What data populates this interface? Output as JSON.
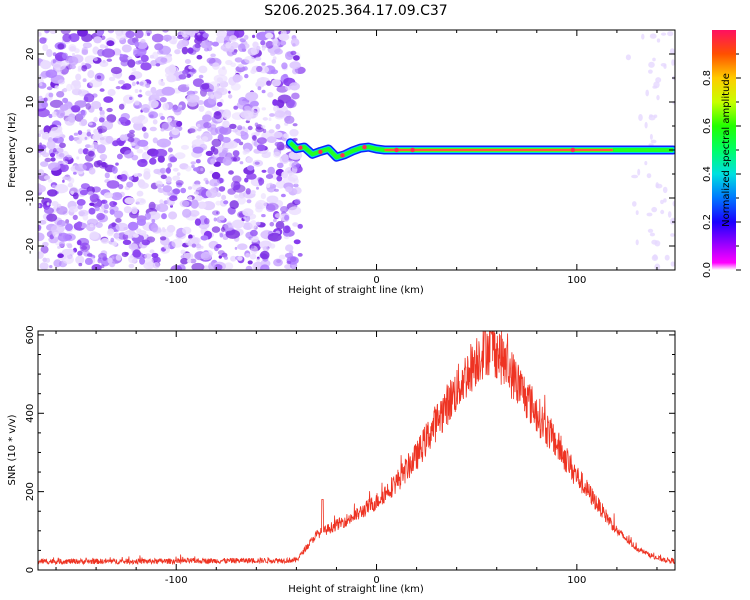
{
  "title": "S206.2025.364.17.09.C37",
  "colors": {
    "snr_line": "#ee3322",
    "noise": "#7a2be6",
    "track_outer": "#1a20ff",
    "track_inner": "#ff2a55"
  },
  "chart_data": [
    {
      "type": "heatmap",
      "xlabel": "Height of straight line (km)",
      "ylabel": "Frequency (Hz)",
      "xlim": [
        -169,
        149
      ],
      "ylim": [
        -25,
        25
      ],
      "xticks": [
        -100,
        0,
        100
      ],
      "yticks": [
        -20,
        -10,
        0,
        10,
        20
      ],
      "noise_region_x": [
        -169,
        -40
      ],
      "edge_noise_x": [
        125,
        149
      ],
      "track": {
        "start_x": -43,
        "end_x": 148,
        "steady_freq_hz": 0,
        "wiggle_points": [
          {
            "x": -43,
            "y": 1.5
          },
          {
            "x": -40,
            "y": 0.3
          },
          {
            "x": -36,
            "y": 0.6
          },
          {
            "x": -32,
            "y": -0.9
          },
          {
            "x": -28,
            "y": -0.3
          },
          {
            "x": -24,
            "y": 0.2
          },
          {
            "x": -20,
            "y": -1.5
          },
          {
            "x": -16,
            "y": -1.0
          },
          {
            "x": -12,
            "y": -0.2
          },
          {
            "x": -8,
            "y": 0.4
          },
          {
            "x": -4,
            "y": 0.6
          },
          {
            "x": 0,
            "y": 0.2
          },
          {
            "x": 4,
            "y": 0.0
          },
          {
            "x": 148,
            "y": 0.0
          }
        ]
      },
      "colorbar": {
        "label": "Normalized spectral amplitude",
        "range": [
          0,
          1
        ],
        "ticks": [
          "0.0",
          "0.2",
          "0.4",
          "0.6",
          "0.8"
        ]
      }
    },
    {
      "type": "line",
      "xlabel": "Height of straight line (km)",
      "ylabel": "SNR (10 * v/v)",
      "xlim": [
        -169,
        149
      ],
      "ylim": [
        0,
        610
      ],
      "xticks": [
        -100,
        0,
        100
      ],
      "yticks": [
        0,
        200,
        400,
        600
      ],
      "series": [
        {
          "name": "SNR",
          "envelope": [
            {
              "x": -169,
              "y": 22
            },
            {
              "x": -120,
              "y": 22
            },
            {
              "x": -40,
              "y": 25
            },
            {
              "x": -30,
              "y": 90
            },
            {
              "x": -20,
              "y": 115
            },
            {
              "x": -10,
              "y": 140
            },
            {
              "x": 0,
              "y": 175
            },
            {
              "x": 10,
              "y": 225
            },
            {
              "x": 20,
              "y": 290
            },
            {
              "x": 30,
              "y": 380
            },
            {
              "x": 40,
              "y": 460
            },
            {
              "x": 50,
              "y": 540
            },
            {
              "x": 55,
              "y": 570
            },
            {
              "x": 60,
              "y": 560
            },
            {
              "x": 70,
              "y": 480
            },
            {
              "x": 80,
              "y": 400
            },
            {
              "x": 90,
              "y": 320
            },
            {
              "x": 100,
              "y": 240
            },
            {
              "x": 110,
              "y": 170
            },
            {
              "x": 120,
              "y": 100
            },
            {
              "x": 130,
              "y": 55
            },
            {
              "x": 140,
              "y": 30
            },
            {
              "x": 149,
              "y": 22
            }
          ],
          "spike_at_x": -27,
          "spike_value": 180,
          "peak_x": 54,
          "peak_value": 610
        }
      ]
    }
  ]
}
